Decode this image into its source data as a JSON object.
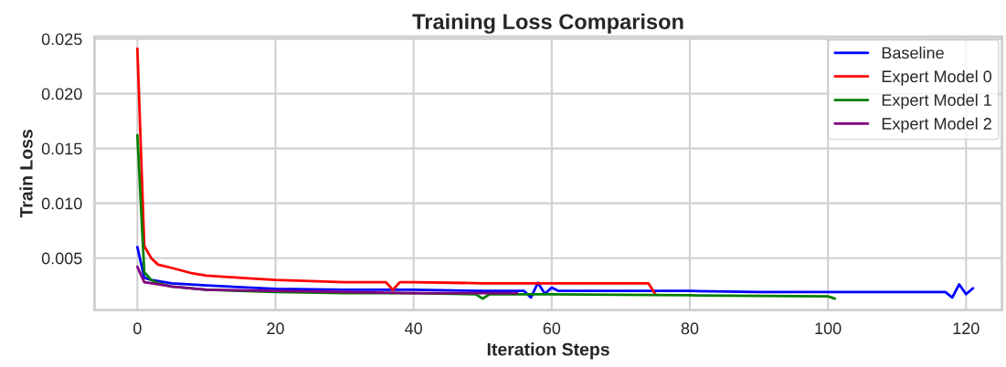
{
  "chart_data": {
    "type": "line",
    "title": "Training Loss Comparison",
    "xlabel": "Iteration Steps",
    "ylabel": "Train Loss",
    "xlim": [
      -6.2,
      125.2
    ],
    "ylim": [
      0.00025,
      0.0252
    ],
    "xticks": [
      0,
      20,
      40,
      60,
      80,
      100,
      120
    ],
    "yticks": [
      0.005,
      {
        "value": 0.01,
        "label": "0.010"
      },
      0.015,
      {
        "value": 0.02,
        "label": "0.020"
      },
      0.025
    ],
    "grid": true,
    "legend": "top right",
    "marker": "none",
    "line_style": "solid",
    "series": [
      {
        "name": "Baseline",
        "color": "#0000ff",
        "x": [
          0,
          1,
          2,
          5,
          10,
          20,
          30,
          40,
          50,
          56,
          57,
          58,
          59,
          60,
          61,
          70,
          80,
          90,
          100,
          110,
          117,
          118,
          119,
          120,
          121
        ],
        "values": [
          0.006,
          0.0032,
          0.003,
          0.0027,
          0.0025,
          0.0022,
          0.0021,
          0.0021,
          0.002,
          0.002,
          0.0014,
          0.00275,
          0.00175,
          0.0023,
          0.002,
          0.002,
          0.002,
          0.0019,
          0.0019,
          0.0019,
          0.0019,
          0.0014,
          0.0026,
          0.0017,
          0.00225
        ]
      },
      {
        "name": "Expert Model 0",
        "color": "#ff0000",
        "x": [
          0,
          1,
          2,
          3,
          5,
          8,
          10,
          15,
          20,
          25,
          30,
          36,
          37,
          38,
          40,
          50,
          60,
          70,
          74,
          75
        ],
        "values": [
          0.0241,
          0.0061,
          0.005,
          0.0044,
          0.0041,
          0.0036,
          0.0034,
          0.0032,
          0.003,
          0.0029,
          0.0028,
          0.0028,
          0.0021,
          0.0028,
          0.0028,
          0.0027,
          0.0027,
          0.0027,
          0.0027,
          0.0017
        ]
      },
      {
        "name": "Expert Model 1",
        "color": "#008000",
        "x": [
          0,
          1,
          2,
          3,
          5,
          10,
          20,
          30,
          40,
          49,
          50,
          51,
          60,
          80,
          100,
          101
        ],
        "values": [
          0.0162,
          0.0037,
          0.003,
          0.0027,
          0.0024,
          0.0021,
          0.0019,
          0.0018,
          0.0018,
          0.0017,
          0.0013,
          0.0017,
          0.0017,
          0.0016,
          0.0015,
          0.0013
        ]
      },
      {
        "name": "Expert Model 2",
        "color": "#800080",
        "x": [
          0,
          1,
          3,
          5,
          10,
          20,
          30,
          40,
          55
        ],
        "values": [
          0.0042,
          0.0028,
          0.0026,
          0.0024,
          0.0021,
          0.002,
          0.0019,
          0.0018,
          0.0018
        ]
      }
    ]
  }
}
